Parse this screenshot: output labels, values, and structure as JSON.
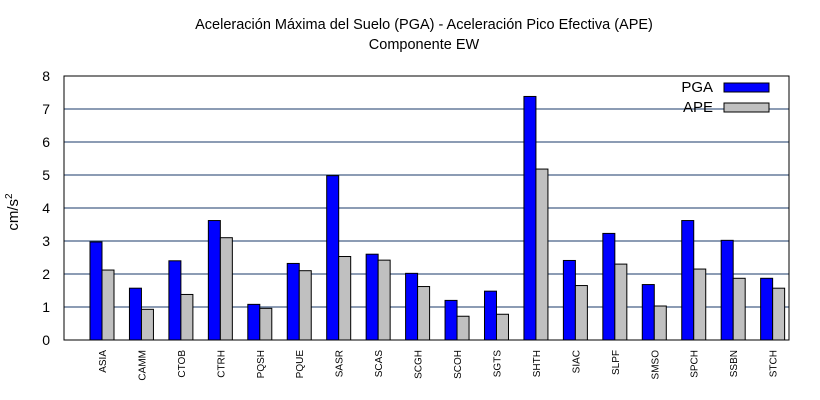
{
  "chart_data": {
    "type": "bar",
    "title_line1": "Aceleración Máxima del Suelo (PGA) -  Aceleración Pico Efectiva (APE)",
    "title_line2": "Componente EW",
    "ylabel": "cm/s",
    "ylabel_sup": "2",
    "xlabel": "",
    "ylim": [
      0,
      8
    ],
    "yticks": [
      0,
      1,
      2,
      3,
      4,
      5,
      6,
      7,
      8
    ],
    "grid": "horizontal",
    "legend_position": "top-right",
    "categories": [
      "ASIA",
      "CAMM",
      "CTOB",
      "CTRH",
      "PQSH",
      "PQUE",
      "SASR",
      "SCAS",
      "SCGH",
      "SCOH",
      "SGTS",
      "SHTH",
      "SIAC",
      "SLPF",
      "SMSO",
      "SPCH",
      "SSBN",
      "STCH"
    ],
    "series": [
      {
        "name": "PGA",
        "color": "#0000ff",
        "values": [
          2.97,
          1.57,
          2.4,
          3.62,
          1.08,
          2.32,
          4.98,
          2.6,
          2.02,
          1.2,
          1.48,
          7.38,
          2.41,
          3.23,
          1.68,
          3.62,
          3.02,
          1.87
        ]
      },
      {
        "name": "APE",
        "color": "#c0c0c0",
        "values": [
          2.12,
          0.93,
          1.38,
          3.1,
          0.96,
          2.1,
          2.53,
          2.42,
          1.62,
          0.72,
          0.78,
          5.18,
          1.65,
          2.3,
          1.03,
          2.15,
          1.87,
          1.57
        ]
      }
    ]
  }
}
